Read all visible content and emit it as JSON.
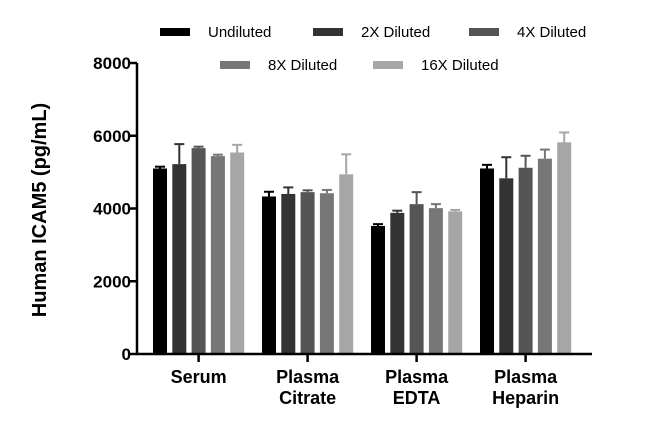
{
  "chart_data": {
    "type": "bar",
    "title": "",
    "xlabel": "",
    "ylabel": "Human ICAM5 (pg/mL)",
    "ylim": [
      0,
      8000
    ],
    "yticks": [
      0,
      2000,
      4000,
      6000,
      8000
    ],
    "grid": false,
    "legend_position": "top",
    "categories": [
      [
        "Serum"
      ],
      [
        "Plasma",
        "Citrate"
      ],
      [
        "Plasma",
        "EDTA"
      ],
      [
        "Plasma",
        "Heparin"
      ]
    ],
    "series": [
      {
        "name": "Undiluted",
        "color": "#000000",
        "values": [
          5100,
          4330,
          3520,
          5100
        ],
        "errors": [
          50,
          130,
          50,
          100
        ]
      },
      {
        "name": "2X Diluted",
        "color": "#333333",
        "values": [
          5220,
          4400,
          3880,
          4830
        ],
        "errors": [
          550,
          180,
          60,
          580
        ]
      },
      {
        "name": "4X Diluted",
        "color": "#555555",
        "values": [
          5660,
          4450,
          4120,
          5120
        ],
        "errors": [
          40,
          50,
          330,
          330
        ]
      },
      {
        "name": "8X Diluted",
        "color": "#777777",
        "values": [
          5440,
          4420,
          4010,
          5370
        ],
        "errors": [
          40,
          90,
          110,
          250
        ]
      },
      {
        "name": "16X Diluted",
        "color": "#a6a6a6",
        "values": [
          5540,
          4940,
          3920,
          5820
        ],
        "errors": [
          210,
          550,
          40,
          270
        ]
      }
    ]
  }
}
